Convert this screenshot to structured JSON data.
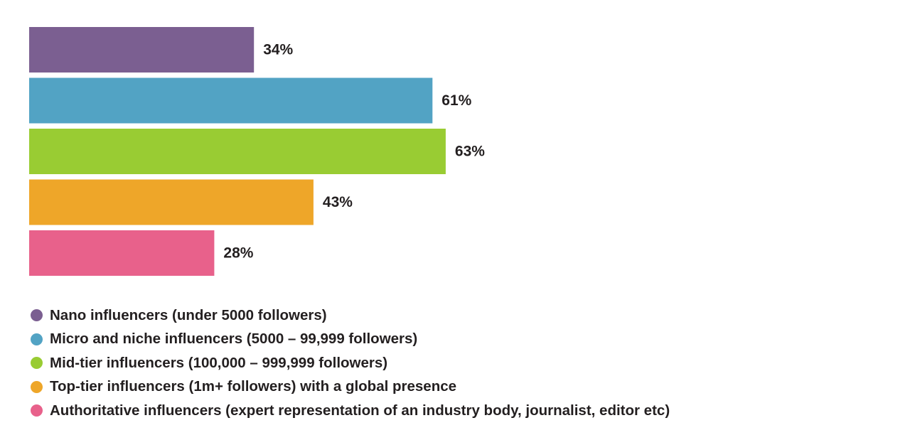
{
  "chart_data": {
    "type": "bar",
    "orientation": "horizontal",
    "categories": [
      "Nano influencers (under 5000 followers)",
      "Micro and niche influencers (5000 – 99,999 followers)",
      "Mid-tier influencers (100,000 – 999,999 followers)",
      "Top-tier influencers (1m+ followers) with a global presence",
      "Authoritative influencers (expert representation of an industry body, journalist, editor etc)"
    ],
    "values": [
      34,
      61,
      63,
      43,
      28
    ],
    "value_labels": [
      "34%",
      "61%",
      "63%",
      "43%",
      "28%"
    ],
    "colors": [
      "#7b5f91",
      "#52a3c4",
      "#99cc33",
      "#eea629",
      "#e8618b"
    ],
    "unit": "%",
    "xlim": [
      0,
      100
    ],
    "grid": false,
    "legend_position": "bottom-left"
  }
}
